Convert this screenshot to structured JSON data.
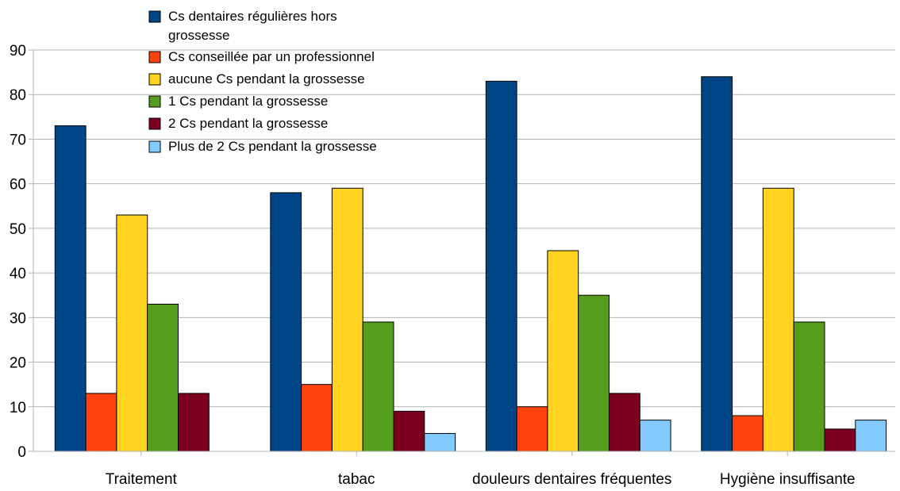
{
  "chart_data": {
    "type": "bar",
    "title": "",
    "xlabel": "",
    "ylabel": "",
    "ylim": [
      0,
      90
    ],
    "yticks": [
      0,
      10,
      20,
      30,
      40,
      50,
      60,
      70,
      80,
      90
    ],
    "grid": "horizontal",
    "legend_position": "top-center",
    "categories": [
      "Traitement",
      "tabac",
      "douleurs dentaires fréquentes",
      "Hygiène insuffisante"
    ],
    "series": [
      {
        "name": "Cs dentaires régulières hors grossesse",
        "color": "#004586",
        "values": [
          73,
          58,
          83,
          84
        ]
      },
      {
        "name": "Cs conseillée par un professionnel",
        "color": "#ff420e",
        "values": [
          13,
          15,
          10,
          8
        ]
      },
      {
        "name": "aucune Cs pendant la grossesse",
        "color": "#ffd320",
        "values": [
          53,
          59,
          45,
          59
        ]
      },
      {
        "name": "1 Cs pendant la grossesse",
        "color": "#579d1c",
        "values": [
          33,
          29,
          35,
          29
        ]
      },
      {
        "name": "2 Cs pendant la grossesse",
        "color": "#7e0021",
        "values": [
          13,
          9,
          13,
          5
        ]
      },
      {
        "name": "Plus de 2 Cs pendant la grossesse",
        "color": "#83caff",
        "values": [
          0,
          4,
          7,
          7
        ]
      }
    ]
  }
}
